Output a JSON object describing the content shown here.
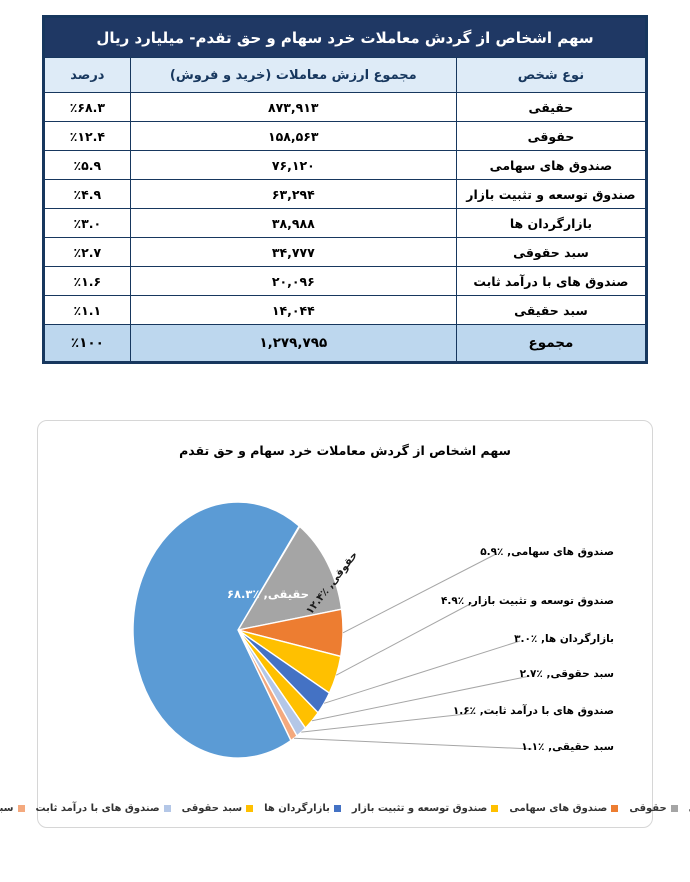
{
  "table": {
    "title": "سهم اشخاص از گردش معاملات خرد سهام و حق تقدم- میلیارد ریال",
    "columns": [
      "نوع شخص",
      "مجموع ارزش معاملات (خرید و فروش)",
      "درصد"
    ],
    "rows": [
      {
        "type": "حقیقی",
        "value": "۸۷۳,۹۱۳",
        "percent": "٪۶۸.۳"
      },
      {
        "type": "حقوقی",
        "value": "۱۵۸,۵۶۳",
        "percent": "٪۱۲.۴"
      },
      {
        "type": "صندوق های سهامی",
        "value": "۷۶,۱۲۰",
        "percent": "٪۵.۹"
      },
      {
        "type": "صندوق توسعه و تثبیت بازار",
        "value": "۶۳,۲۹۴",
        "percent": "٪۴.۹"
      },
      {
        "type": "بازارگردان ها",
        "value": "۳۸,۹۸۸",
        "percent": "٪۳.۰"
      },
      {
        "type": "سبد حقوقی",
        "value": "۳۴,۷۷۷",
        "percent": "٪۲.۷"
      },
      {
        "type": "صندوق های با درآمد ثابت",
        "value": "۲۰,۰۹۶",
        "percent": "٪۱.۶"
      },
      {
        "type": "سبد حقیقی",
        "value": "۱۴,۰۴۴",
        "percent": "٪۱.۱"
      }
    ],
    "total": {
      "type": "مجموع",
      "value": "۱,۲۷۹,۷۹۵",
      "percent": "٪۱۰۰"
    }
  },
  "chart_data": {
    "type": "pie",
    "title": "سهم اشخاص از گردش معاملات خرد سهام و حق تقدم",
    "legend_position": "bottom",
    "start_angle_deg": 36,
    "direction": "clockwise",
    "slices": [
      {
        "key": "individual",
        "label": "حقیقی",
        "value": 68.3,
        "color": "#5B9BD5",
        "display": "حقیقی, ٪۶۸.۳",
        "label_placement": "inside"
      },
      {
        "key": "legal",
        "label": "حقوقی",
        "value": 12.4,
        "color": "#A5A5A5",
        "display": "حقوقی, ٪۱۲.۴",
        "label_placement": "inside-rotated"
      },
      {
        "key": "equity-funds",
        "label": "صندوق های سهامی",
        "value": 5.9,
        "color": "#ED7D31",
        "display": "صندوق های سهامی, ٪۵.۹",
        "label_placement": "outside"
      },
      {
        "key": "market-dev-stabilization-fund",
        "label": "صندوق توسعه و تثبیت بازار",
        "value": 4.9,
        "color": "#FFC000",
        "display": "صندوق توسعه و تثبیت بازار, ٪۴.۹",
        "label_placement": "outside"
      },
      {
        "key": "market-makers",
        "label": "بازارگردان ها",
        "value": 3.0,
        "color": "#4472C4",
        "display": "بازارگردان ها, ٪۳.۰",
        "label_placement": "outside"
      },
      {
        "key": "legal-portfolio",
        "label": "سبد حقوقی",
        "value": 2.7,
        "color": "#FFC000",
        "display": "سبد حقوقی, ٪۲.۷",
        "label_placement": "outside"
      },
      {
        "key": "fixed-income-funds",
        "label": "صندوق های با درآمد ثابت",
        "value": 1.6,
        "color": "#B4C7E7",
        "display": "صندوق های با درآمد ثابت, ٪۱.۶",
        "label_placement": "outside"
      },
      {
        "key": "individual-portfolio",
        "label": "سبد حقیقی",
        "value": 1.1,
        "color": "#F4A97E",
        "display": "سبد حقیقی, ٪۱.۱",
        "label_placement": "outside"
      }
    ]
  }
}
